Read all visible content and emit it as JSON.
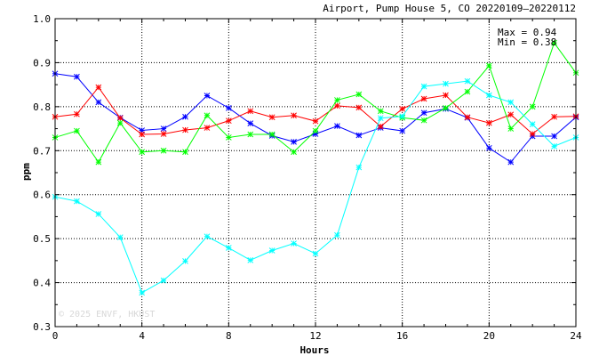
{
  "chart_data": {
    "type": "line",
    "title": "Airport, Pump House 5, CO 20220109–20220112",
    "xlabel": "Hours",
    "ylabel": "ppm",
    "xlim": [
      0,
      24
    ],
    "ylim": [
      0.3,
      1.0
    ],
    "x_ticks": [
      "0",
      "4",
      "8",
      "12",
      "16",
      "20",
      "24"
    ],
    "y_ticks": [
      "0.3",
      "0.4",
      "0.5",
      "0.6",
      "0.7",
      "0.8",
      "0.9",
      "1.0"
    ],
    "grid": true,
    "stats": {
      "max": "Max = 0.94",
      "min": "Min = 0.38"
    },
    "watermark": "© 2025  ENVF, HKUST",
    "x": [
      0,
      1,
      2,
      3,
      4,
      5,
      6,
      7,
      8,
      9,
      10,
      11,
      12,
      13,
      14,
      15,
      16,
      17,
      18,
      19,
      20,
      21,
      22,
      23,
      24
    ],
    "series": [
      {
        "color": "#0000ff",
        "values": [
          0.875,
          0.868,
          0.81,
          0.775,
          0.746,
          0.75,
          0.777,
          0.825,
          0.797,
          0.762,
          0.734,
          0.72,
          0.738,
          0.756,
          0.735,
          0.752,
          0.745,
          0.786,
          0.795,
          0.775,
          0.706,
          0.674,
          0.733,
          0.733,
          0.776
        ]
      },
      {
        "color": "#ff0000",
        "values": [
          0.777,
          0.783,
          0.844,
          0.774,
          0.737,
          0.738,
          0.747,
          0.752,
          0.768,
          0.79,
          0.776,
          0.78,
          0.767,
          0.802,
          0.798,
          0.755,
          0.795,
          0.818,
          0.826,
          0.776,
          0.763,
          0.782,
          0.738,
          0.777,
          0.778
        ]
      },
      {
        "color": "#00ff00",
        "values": [
          0.73,
          0.745,
          0.674,
          0.763,
          0.697,
          0.7,
          0.697,
          0.78,
          0.73,
          0.737,
          0.737,
          0.697,
          0.745,
          0.815,
          0.828,
          0.79,
          0.775,
          0.769,
          0.797,
          0.834,
          0.893,
          0.75,
          0.8,
          0.945,
          0.877
        ]
      },
      {
        "color": "#00ffff",
        "values": [
          0.595,
          0.585,
          0.556,
          0.503,
          0.377,
          0.405,
          0.449,
          0.505,
          0.479,
          0.451,
          0.473,
          0.489,
          0.466,
          0.508,
          0.662,
          0.774,
          0.778,
          0.846,
          0.852,
          0.858,
          0.826,
          0.81,
          0.76,
          0.71,
          0.73
        ]
      }
    ]
  }
}
